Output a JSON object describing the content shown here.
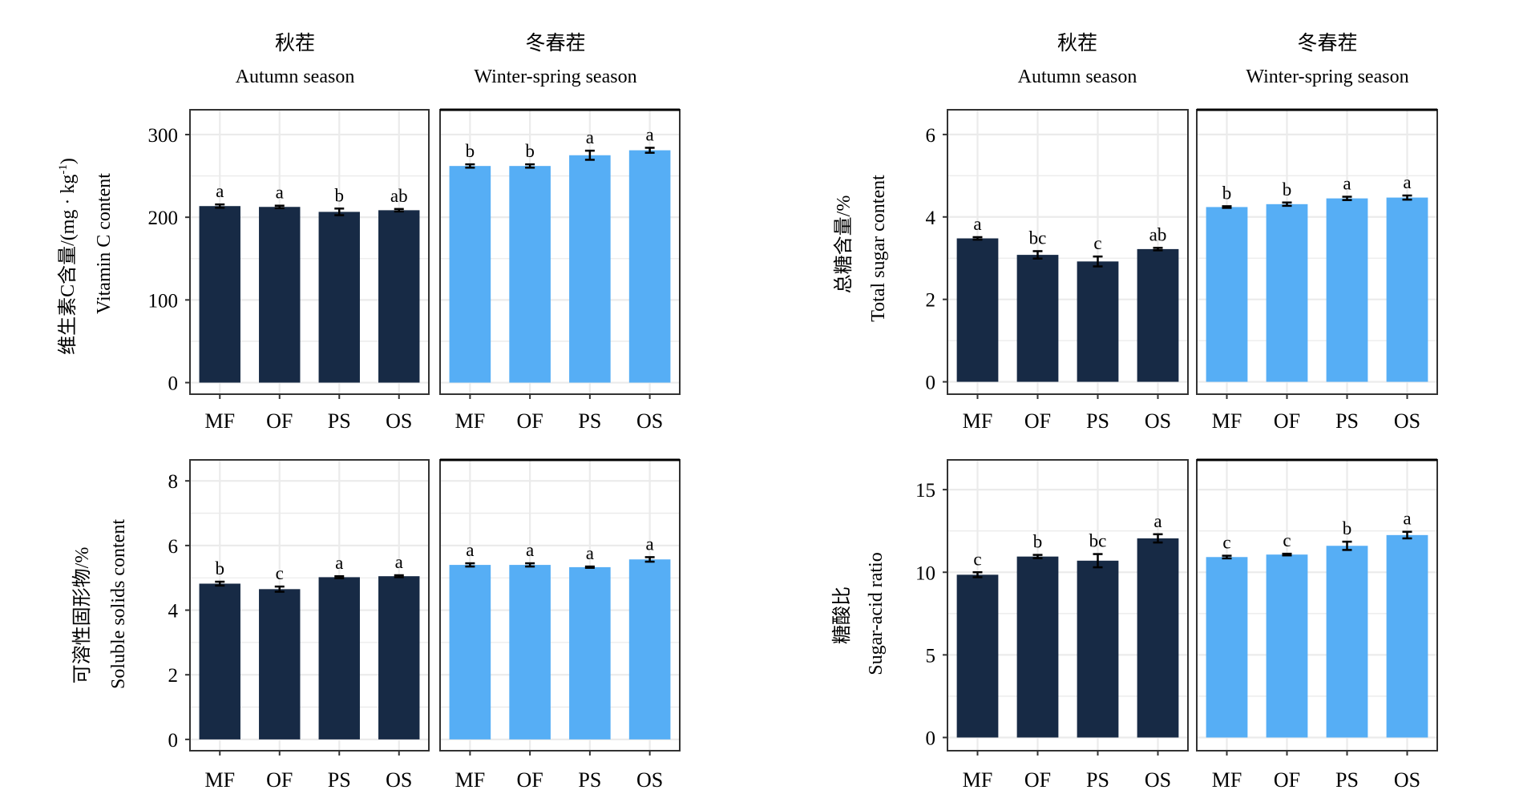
{
  "colors": {
    "autumn_bar": "#172a45",
    "winter_bar": "#56aef5",
    "grid": "#ebebeb",
    "panel_border": "#333333",
    "error_bar": "#000000"
  },
  "chart_data": [
    {
      "type": "bar",
      "id": "vitamin-c",
      "ylabel_cn": "维生素C含量/(mg · kg",
      "ylabel_sup": "-1",
      "ylabel_close": ")",
      "ylabel_en": "Vitamin C content",
      "ylim": [
        -14,
        330
      ],
      "yticks": [
        0,
        100,
        200,
        300
      ],
      "ytick_labels": [
        "0",
        "100",
        "200",
        "300"
      ],
      "categories": [
        "MF",
        "OF",
        "PS",
        "OS"
      ],
      "grid": true,
      "facets": [
        {
          "strip_cn": "秋茬",
          "strip_en": "Autumn season",
          "values": [
            213.5,
            212.5,
            206.5,
            208.5
          ],
          "errors": [
            2,
            1.5,
            4,
            1.5
          ],
          "letters": [
            "a",
            "a",
            "b",
            "ab"
          ]
        },
        {
          "strip_cn": "冬春茬",
          "strip_en": "Winter-spring season",
          "values": [
            262,
            262,
            275,
            281
          ],
          "errors": [
            2,
            2,
            5.5,
            3
          ],
          "letters": [
            "b",
            "b",
            "a",
            "a"
          ]
        }
      ]
    },
    {
      "type": "bar",
      "id": "total-sugar",
      "ylabel_cn": "总糖含量/%",
      "ylabel_en": "Total sugar content",
      "ylim": [
        -0.3,
        6.6
      ],
      "yticks": [
        0,
        2,
        4,
        6
      ],
      "ytick_labels": [
        "0",
        "2",
        "4",
        "6"
      ],
      "categories": [
        "MF",
        "OF",
        "PS",
        "OS"
      ],
      "grid": true,
      "facets": [
        {
          "strip_cn": "秋茬",
          "strip_en": "Autumn season",
          "values": [
            3.48,
            3.08,
            2.92,
            3.22
          ],
          "errors": [
            0.03,
            0.09,
            0.12,
            0.03
          ],
          "letters": [
            "a",
            "bc",
            "c",
            "ab"
          ]
        },
        {
          "strip_cn": "冬春茬",
          "strip_en": "Winter-spring season",
          "values": [
            4.24,
            4.31,
            4.45,
            4.47
          ],
          "errors": [
            0.02,
            0.04,
            0.04,
            0.05
          ],
          "letters": [
            "b",
            "b",
            "a",
            "a"
          ]
        }
      ]
    },
    {
      "type": "bar",
      "id": "soluble-solids",
      "ylabel_cn": "可溶性固形物/%",
      "ylabel_en": "Soluble solids content",
      "ylim": [
        -0.35,
        8.65
      ],
      "yticks": [
        0,
        2,
        4,
        6,
        8
      ],
      "ytick_labels": [
        "0",
        "2",
        "4",
        "6",
        "8"
      ],
      "categories": [
        "MF",
        "OF",
        "PS",
        "OS"
      ],
      "grid": true,
      "facets": [
        {
          "values": [
            4.82,
            4.65,
            5.02,
            5.05
          ],
          "errors": [
            0.06,
            0.08,
            0.03,
            0.03
          ],
          "letters": [
            "b",
            "c",
            "a",
            "a"
          ]
        },
        {
          "values": [
            5.4,
            5.4,
            5.33,
            5.57
          ],
          "errors": [
            0.05,
            0.05,
            0.02,
            0.07
          ],
          "letters": [
            "a",
            "a",
            "a",
            "a"
          ]
        }
      ]
    },
    {
      "type": "bar",
      "id": "sugar-acid-ratio",
      "ylabel_cn": "糖酸比",
      "ylabel_en": "Sugar-acid ratio",
      "ylim": [
        -0.8,
        16.8
      ],
      "yticks": [
        0,
        5,
        10,
        15
      ],
      "ytick_labels": [
        "0",
        "5",
        "10",
        "15"
      ],
      "categories": [
        "MF",
        "OF",
        "PS",
        "OS"
      ],
      "grid": true,
      "facets": [
        {
          "values": [
            9.85,
            10.95,
            10.7,
            12.05
          ],
          "errors": [
            0.15,
            0.1,
            0.4,
            0.25
          ],
          "letters": [
            "c",
            "b",
            "bc",
            "a"
          ]
        },
        {
          "values": [
            10.92,
            11.07,
            11.6,
            12.25
          ],
          "errors": [
            0.08,
            0.05,
            0.25,
            0.2
          ],
          "letters": [
            "c",
            "c",
            "b",
            "a"
          ]
        }
      ]
    }
  ]
}
